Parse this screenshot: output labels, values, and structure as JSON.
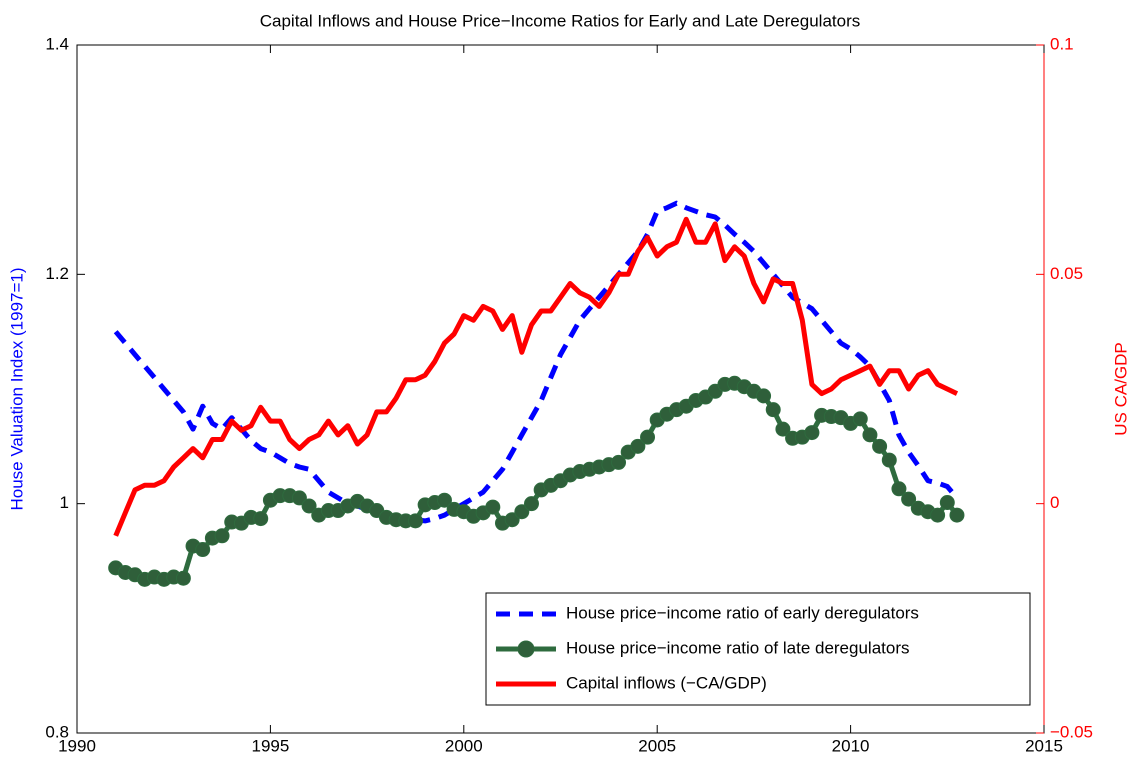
{
  "chart_data": {
    "type": "line",
    "title": "Capital Inflows and House Price−Income Ratios for Early and Late Deregulators",
    "y_label": "House Valuation Index (1997=1)",
    "y2_label": "US CA/GDP",
    "x": [
      1991,
      1991.25,
      1991.5,
      1991.75,
      1992,
      1992.25,
      1992.5,
      1992.75,
      1993,
      1993.25,
      1993.5,
      1993.75,
      1994,
      1994.25,
      1994.5,
      1994.75,
      1995,
      1995.25,
      1995.5,
      1995.75,
      1996,
      1996.25,
      1996.5,
      1996.75,
      1997,
      1997.25,
      1997.5,
      1997.75,
      1998,
      1998.25,
      1998.5,
      1998.75,
      1999,
      1999.25,
      1999.5,
      1999.75,
      2000,
      2000.25,
      2000.5,
      2000.75,
      2001,
      2001.25,
      2001.5,
      2001.75,
      2002,
      2002.25,
      2002.5,
      2002.75,
      2003,
      2003.25,
      2003.5,
      2003.75,
      2004,
      2004.25,
      2004.5,
      2004.75,
      2005,
      2005.25,
      2005.5,
      2005.75,
      2006,
      2006.25,
      2006.5,
      2006.75,
      2007,
      2007.25,
      2007.5,
      2007.75,
      2008,
      2008.25,
      2008.5,
      2008.75,
      2009,
      2009.25,
      2009.5,
      2009.75,
      2010,
      2010.25,
      2010.5,
      2010.75,
      2011,
      2011.25,
      2011.5,
      2011.75,
      2012,
      2012.25,
      2012.5,
      2012.75
    ],
    "series": [
      {
        "name": "House price−income ratio of early deregulators",
        "color": "#0000ff",
        "line_style": "dashed",
        "axis": "y",
        "values": [
          1.15,
          1.14,
          1.13,
          1.12,
          1.11,
          1.1,
          1.09,
          1.08,
          1.065,
          1.085,
          1.07,
          1.065,
          1.075,
          1.065,
          1.055,
          1.048,
          1.045,
          1.04,
          1.035,
          1.032,
          1.03,
          1.02,
          1.01,
          1.005,
          1.0,
          0.998,
          0.995,
          0.993,
          0.99,
          0.988,
          0.987,
          0.986,
          0.985,
          0.987,
          0.99,
          0.995,
          1.0,
          1.005,
          1.01,
          1.02,
          1.03,
          1.045,
          1.06,
          1.075,
          1.09,
          1.11,
          1.13,
          1.145,
          1.16,
          1.17,
          1.18,
          1.19,
          1.2,
          1.21,
          1.22,
          1.235,
          1.255,
          1.258,
          1.262,
          1.258,
          1.255,
          1.252,
          1.25,
          1.243,
          1.235,
          1.228,
          1.22,
          1.21,
          1.2,
          1.19,
          1.18,
          1.175,
          1.17,
          1.16,
          1.15,
          1.14,
          1.135,
          1.128,
          1.12,
          1.105,
          1.09,
          1.06,
          1.045,
          1.033,
          1.02,
          1.018,
          1.015,
          1.005
        ]
      },
      {
        "name": "House price−income ratio of late deregulators",
        "color": "#2e6b3e",
        "marker": "circle",
        "axis": "y",
        "values": [
          0.944,
          0.94,
          0.938,
          0.934,
          0.936,
          0.934,
          0.936,
          0.935,
          0.963,
          0.96,
          0.97,
          0.972,
          0.984,
          0.983,
          0.988,
          0.987,
          1.003,
          1.007,
          1.007,
          1.005,
          0.998,
          0.99,
          0.994,
          0.994,
          0.998,
          1.002,
          0.998,
          0.994,
          0.988,
          0.986,
          0.985,
          0.985,
          0.999,
          1.001,
          1.003,
          0.995,
          0.993,
          0.989,
          0.992,
          0.997,
          0.983,
          0.986,
          0.993,
          1.0,
          1.012,
          1.016,
          1.02,
          1.025,
          1.028,
          1.03,
          1.032,
          1.034,
          1.036,
          1.045,
          1.05,
          1.058,
          1.073,
          1.078,
          1.082,
          1.085,
          1.09,
          1.093,
          1.098,
          1.104,
          1.105,
          1.102,
          1.098,
          1.094,
          1.082,
          1.065,
          1.057,
          1.058,
          1.062,
          1.077,
          1.076,
          1.075,
          1.07,
          1.074,
          1.06,
          1.05,
          1.038,
          1.013,
          1.004,
          0.996,
          0.993,
          0.99,
          1.001,
          0.99
        ]
      },
      {
        "name": "Capital inflows (−CA/GDP)",
        "color": "#ff0000",
        "axis": "y2",
        "values": [
          -0.007,
          -0.002,
          0.003,
          0.004,
          0.004,
          0.005,
          0.008,
          0.01,
          0.012,
          0.01,
          0.014,
          0.014,
          0.018,
          0.016,
          0.017,
          0.021,
          0.018,
          0.018,
          0.014,
          0.012,
          0.014,
          0.015,
          0.018,
          0.015,
          0.017,
          0.013,
          0.015,
          0.02,
          0.02,
          0.023,
          0.027,
          0.027,
          0.028,
          0.031,
          0.035,
          0.037,
          0.041,
          0.04,
          0.043,
          0.042,
          0.038,
          0.041,
          0.033,
          0.039,
          0.042,
          0.042,
          0.045,
          0.048,
          0.046,
          0.045,
          0.043,
          0.046,
          0.05,
          0.05,
          0.055,
          0.058,
          0.054,
          0.056,
          0.057,
          0.062,
          0.057,
          0.057,
          0.061,
          0.053,
          0.056,
          0.054,
          0.048,
          0.044,
          0.049,
          0.048,
          0.048,
          0.04,
          0.026,
          0.024,
          0.025,
          0.027,
          0.028,
          0.029,
          0.03,
          0.026,
          0.029,
          0.029,
          0.025,
          0.028,
          0.029,
          0.026,
          0.025,
          0.024
        ]
      }
    ],
    "xlim": [
      1990,
      2015
    ],
    "xticks": [
      1990,
      1995,
      2000,
      2005,
      2010,
      2015
    ],
    "ylim": [
      0.8,
      1.4
    ],
    "yticks": [
      0.8,
      1,
      1.2,
      1.4
    ],
    "y2lim": [
      -0.05,
      0.1
    ],
    "y2ticks": [
      {
        "value": -0.05,
        "label": "−0.05"
      },
      0,
      0.05,
      0.1
    ],
    "grid": false,
    "legend": "lower right"
  }
}
